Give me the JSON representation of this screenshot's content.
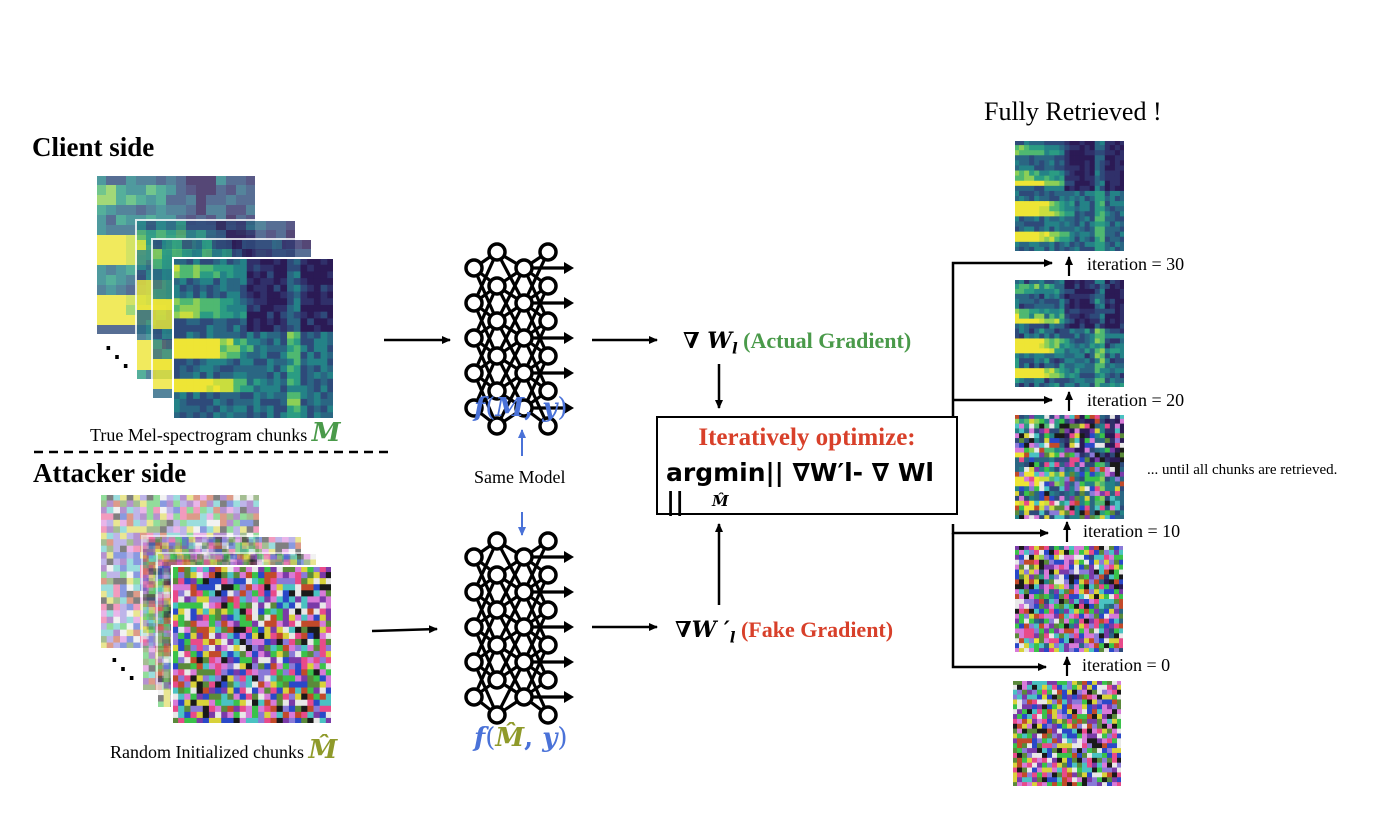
{
  "client": {
    "title": "Client side",
    "chunks_caption": "True Mel-spectrogram chunks",
    "chunks_symbol": "M",
    "model_expr": {
      "f": "f",
      "open": "(",
      "var": "M",
      "sep": ", ",
      "y": "y",
      "close": ")"
    }
  },
  "attacker": {
    "title": "Attacker side",
    "chunks_caption": "Random Initialized chunks",
    "chunks_symbol": "M̂",
    "model_expr": {
      "f": "f",
      "open": "(",
      "var": "M̂",
      "sep": ", ",
      "y": "y",
      "close": ")"
    }
  },
  "same_model_label": "Same Model",
  "ellipsis": "⋱",
  "actual_gradient": {
    "symbol": "∇ W",
    "subscript": "l",
    "label": "(Actual Gradient)"
  },
  "fake_gradient": {
    "symbol": "∇W ′",
    "subscript": "l",
    "label": "(Fake Gradient)"
  },
  "optimize": {
    "title": "Iteratively optimize:",
    "expression": "argmin|| ∇W′l- ∇ Wl ||",
    "subscript": "M̂"
  },
  "retrieved_title": "Fully Retrieved !",
  "iterations": [
    "iteration = 30",
    "iteration = 20",
    "iteration = 10",
    "iteration = 0"
  ],
  "until_note": "... until all chunks are retrieved.",
  "colors": {
    "green": "#4a9a4a",
    "olive": "#8f9a2a",
    "blue": "#4a72d8",
    "red": "#d8402a"
  }
}
